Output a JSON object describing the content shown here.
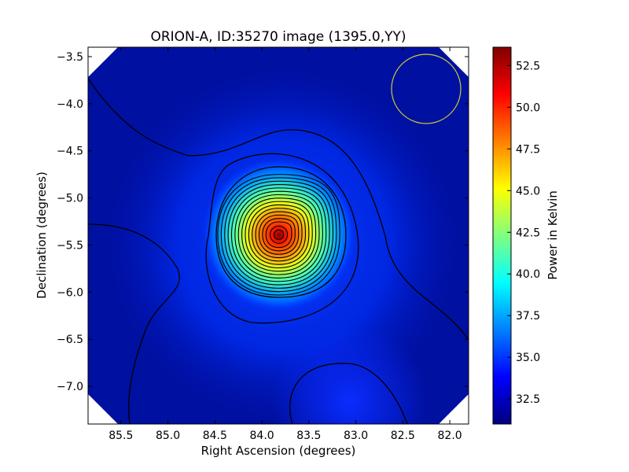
{
  "chart_data": {
    "type": "heatmap",
    "title": "ORION-A, ID:35270 image (1395.0,YY)",
    "xlabel": "Right Ascension (degrees)",
    "ylabel": "Declination (degrees)",
    "xlim": [
      85.85,
      81.8
    ],
    "ylim": [
      -7.4,
      -3.4
    ],
    "x_ticks": [
      85.5,
      85.0,
      84.5,
      84.0,
      83.5,
      83.0,
      82.5,
      82.0
    ],
    "x_tick_labels": [
      "85.5",
      "85.0",
      "84.5",
      "84.0",
      "83.5",
      "83.0",
      "82.5",
      "82.0"
    ],
    "y_ticks": [
      -3.5,
      -4.0,
      -4.5,
      -5.0,
      -5.5,
      -6.0,
      -6.5,
      -7.0
    ],
    "y_tick_labels": [
      "−3.5",
      "−4.0",
      "−4.5",
      "−5.0",
      "−5.5",
      "−6.0",
      "−6.5",
      "−7.0"
    ],
    "colorbar": {
      "label": "Power in Kelvin",
      "range": [
        31.0,
        53.6
      ],
      "ticks": [
        32.5,
        35.0,
        37.5,
        40.0,
        42.5,
        45.0,
        47.5,
        50.0,
        52.5
      ],
      "tick_labels": [
        "32.5",
        "35.0",
        "37.5",
        "40.0",
        "42.5",
        "45.0",
        "47.5",
        "50.0",
        "52.5"
      ],
      "colormap": "jet"
    },
    "peak": {
      "ra": 83.82,
      "dec": -5.39,
      "value": 53.5
    },
    "beam_circle": {
      "ra": 82.27,
      "dec": -3.82,
      "radius_deg": 0.37,
      "color": "#cccc33"
    },
    "contour_color": "#000000"
  }
}
